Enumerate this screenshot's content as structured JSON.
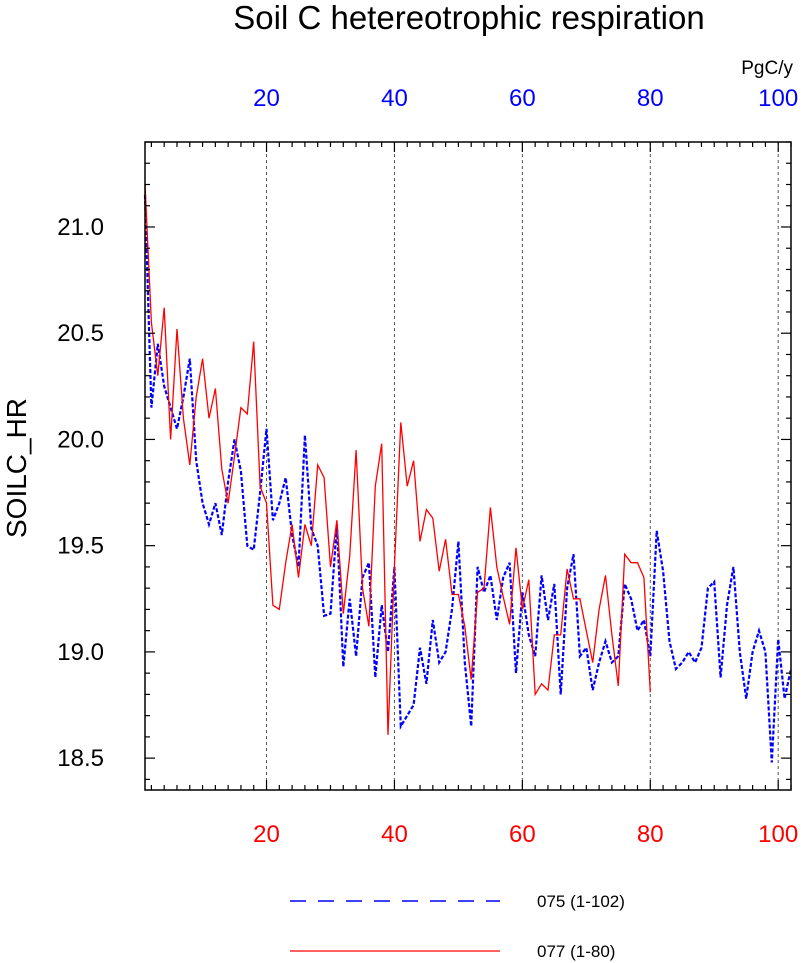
{
  "chart_data": {
    "type": "line",
    "title": "Soil C hetereotrophic respiration",
    "ylabel": "SOILC_HR",
    "units": "PgC/y",
    "xlim": [
      1,
      102
    ],
    "ylim": [
      18.35,
      21.4
    ],
    "x_ticks": [
      20,
      40,
      60,
      80,
      100
    ],
    "y_ticks": [
      18.5,
      19.0,
      19.5,
      20.0,
      20.5,
      21.0
    ],
    "y_tick_labels": [
      "18.5",
      "19.0",
      "19.5",
      "20.0",
      "20.5",
      "21.0"
    ],
    "top_axis_color": "#0000ff",
    "bottom_axis_color": "#ff0000",
    "grid_x": true,
    "legend_position": "bottom",
    "series": [
      {
        "name": "075 (1-102)",
        "color": "#0000ff",
        "style": "dashed",
        "x_start": 1,
        "values": [
          21.15,
          20.15,
          20.45,
          20.25,
          20.15,
          20.05,
          20.2,
          20.38,
          19.9,
          19.7,
          19.6,
          19.7,
          19.55,
          19.8,
          20.0,
          19.85,
          19.5,
          19.48,
          19.75,
          20.05,
          19.62,
          19.7,
          19.82,
          19.55,
          19.4,
          20.02,
          19.58,
          19.5,
          19.17,
          19.18,
          19.6,
          18.93,
          19.25,
          18.98,
          19.35,
          19.42,
          18.88,
          19.22,
          19.0,
          19.4,
          18.65,
          18.7,
          18.75,
          19.02,
          18.85,
          19.15,
          18.95,
          19.0,
          19.2,
          19.52,
          18.95,
          18.65,
          19.4,
          19.28,
          19.36,
          19.15,
          19.35,
          19.42,
          18.9,
          19.28,
          19.08,
          18.98,
          19.36,
          19.15,
          19.32,
          18.8,
          19.3,
          19.46,
          18.98,
          19.02,
          18.82,
          18.95,
          19.05,
          18.95,
          18.98,
          19.32,
          19.25,
          19.1,
          19.15,
          18.98,
          19.57,
          19.38,
          19.05,
          18.92,
          18.95,
          19.0,
          18.95,
          19.02,
          19.3,
          19.33,
          18.88,
          19.22,
          19.4,
          19.0,
          18.78,
          19.0,
          19.1,
          19.0,
          18.48,
          19.06,
          18.78,
          18.92
        ]
      },
      {
        "name": "077 (1-80)",
        "color": "#ff0000",
        "style": "solid",
        "x_start": 1,
        "values": [
          21.2,
          20.55,
          20.3,
          20.62,
          20.0,
          20.52,
          20.1,
          19.88,
          20.2,
          20.38,
          20.1,
          20.24,
          19.86,
          19.7,
          19.92,
          20.15,
          20.12,
          20.46,
          19.78,
          19.7,
          19.22,
          19.2,
          19.42,
          19.6,
          19.35,
          19.6,
          19.5,
          19.88,
          19.82,
          19.4,
          19.62,
          19.18,
          19.45,
          19.95,
          19.3,
          19.12,
          19.78,
          19.98,
          18.61,
          19.4,
          20.08,
          19.78,
          19.9,
          19.52,
          19.67,
          19.63,
          19.38,
          19.53,
          19.27,
          19.27,
          19.12,
          18.87,
          19.28,
          19.3,
          19.68,
          19.4,
          19.26,
          19.13,
          19.49,
          19.2,
          19.34,
          18.8,
          18.85,
          18.82,
          19.08,
          19.08,
          19.39,
          19.25,
          19.25,
          19.1,
          18.95,
          19.2,
          19.36,
          19.08,
          18.84,
          19.46,
          19.42,
          19.42,
          19.35,
          18.81
        ]
      }
    ]
  }
}
